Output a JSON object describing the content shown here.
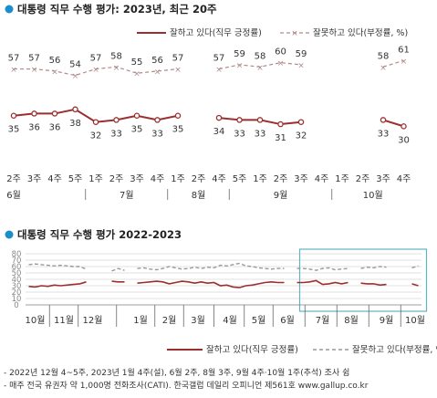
{
  "colors": {
    "approve": "#9b2f2f",
    "disapprove": "#b08a8a",
    "trend_disapprove": "#999999",
    "highlight": "#5fb3c3",
    "title_dot": "#1a8ec9",
    "grid": "#d9d9d9"
  },
  "footnotes": [
    "- 2022년 12월 4~5주, 2023년 1월 4주(설), 6월 2주, 8월 3주, 9월 4주·10월 1주(추석) 조사 쉼",
    "- 매주 전국 유권자 약 1,000명 전화조사(CATI). 한국갤럽 데일리 오피니언 제561호 www.gallup.co.kr"
  ],
  "chart_data": [
    {
      "type": "line",
      "title": "대통령 직무 수행 평가: 2023년, 최근 20주",
      "legend_position": "top-right",
      "x": [
        "2주",
        "3주",
        "4주",
        "5주",
        "1주",
        "2주",
        "3주",
        "4주",
        "1주",
        "2주",
        "4주",
        "5주",
        "1주",
        "2주",
        "3주",
        "4주",
        "1주",
        "2주",
        "3주",
        "4주"
      ],
      "months": [
        {
          "label": "6월",
          "start": 0,
          "end": 3
        },
        {
          "label": "7월",
          "start": 4,
          "end": 7
        },
        {
          "label": "8월",
          "start": 8,
          "end": 10
        },
        {
          "label": "9월",
          "start": 11,
          "end": 15
        },
        {
          "label": "10월",
          "start": 16,
          "end": 19
        }
      ],
      "series": [
        {
          "name": "잘하고 있다(직무 긍정률)",
          "marker": "line",
          "values": [
            35,
            36,
            36,
            38,
            32,
            33,
            35,
            33,
            35,
            null,
            34,
            33,
            33,
            31,
            32,
            null,
            null,
            null,
            33,
            30
          ]
        },
        {
          "name": "잘못하고 있다(부정률, %)",
          "marker": "dashed-x",
          "values": [
            57,
            57,
            56,
            54,
            57,
            58,
            55,
            56,
            57,
            null,
            57,
            59,
            58,
            60,
            59,
            null,
            null,
            null,
            58,
            61
          ]
        }
      ],
      "ylim": [
        25,
        68
      ]
    },
    {
      "type": "line",
      "title": "대통령 직무 수행 평가 2022-2023",
      "legend_position": "bottom-right",
      "ylim": [
        0,
        80
      ],
      "yticks": [
        "0",
        "10",
        "20",
        "30",
        "40",
        "50",
        "60",
        "70",
        "80"
      ],
      "x_labels": [
        {
          "label": "10월",
          "week": 1
        },
        {
          "label": "11월",
          "week": 5.5
        },
        {
          "label": "12월",
          "week": 10
        },
        {
          "label": "1월",
          "week": 17.5
        },
        {
          "label": "2월",
          "week": 22
        },
        {
          "label": "3월",
          "week": 26.5
        },
        {
          "label": "4월",
          "week": 31.5
        },
        {
          "label": "5월",
          "week": 36
        },
        {
          "label": "6월",
          "week": 40.5
        },
        {
          "label": "7월",
          "week": 46
        },
        {
          "label": "8월",
          "week": 50.5
        },
        {
          "label": "9월",
          "week": 56
        },
        {
          "label": "10월",
          "week": 60.5
        }
      ],
      "highlight_range": [
        43,
        62
      ],
      "series": [
        {
          "name": "잘하고 있다(직무 긍정률)",
          "marker": "line",
          "values": [
            29,
            28,
            30,
            29,
            31,
            30,
            31,
            32,
            33,
            36,
            null,
            null,
            null,
            37,
            36,
            36,
            null,
            34,
            35,
            36,
            37,
            36,
            33,
            35,
            37,
            36,
            34,
            36,
            34,
            35,
            30,
            31,
            28,
            27,
            30,
            31,
            33,
            35,
            36,
            35,
            35,
            null,
            35,
            35,
            36,
            38,
            32,
            33,
            35,
            33,
            35,
            null,
            34,
            33,
            33,
            31,
            32,
            null,
            null,
            null,
            33,
            30
          ]
        },
        {
          "name": "잘못하고 있다(부정률, %)",
          "marker": "dashed",
          "values": [
            63,
            64,
            63,
            62,
            61,
            62,
            61,
            60,
            60,
            56,
            null,
            null,
            null,
            53,
            57,
            54,
            null,
            57,
            58,
            56,
            55,
            57,
            60,
            58,
            56,
            57,
            59,
            57,
            59,
            58,
            62,
            61,
            63,
            65,
            61,
            60,
            58,
            57,
            56,
            57,
            57,
            null,
            57,
            57,
            56,
            54,
            57,
            58,
            55,
            56,
            57,
            null,
            57,
            59,
            58,
            60,
            59,
            null,
            null,
            null,
            58,
            61
          ]
        }
      ]
    }
  ]
}
